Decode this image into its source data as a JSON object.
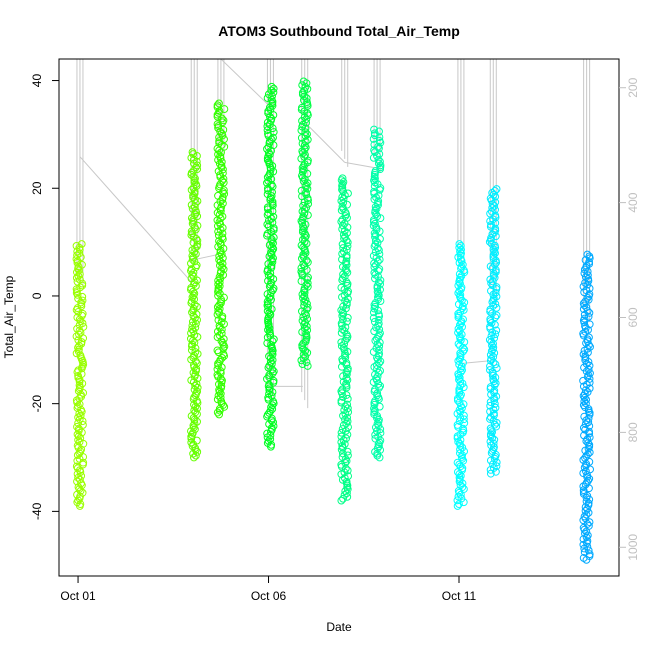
{
  "chart_data": {
    "type": "scatter",
    "title": "ATOM3 Southbound Total_Air_Temp",
    "xlabel": "Date",
    "ylabel": "Total_Air_Temp",
    "x_ticks": [
      {
        "label": "Oct 01",
        "day": 1
      },
      {
        "label": "Oct 06",
        "day": 6
      },
      {
        "label": "Oct 11",
        "day": 11
      }
    ],
    "xlim_days": [
      0.5,
      15.2
    ],
    "ylim": [
      -52,
      44
    ],
    "y_ticks": [
      -40,
      -20,
      0,
      20,
      40
    ],
    "y2_ticks": [
      200,
      400,
      600,
      800,
      1000
    ],
    "y2lim": [
      1050,
      150
    ],
    "y2_color": "#c0c0c0",
    "grid": false,
    "legend": "none",
    "series": [
      {
        "day": 1.05,
        "ymin": -39,
        "ymax": 10,
        "color": "#99ff00"
      },
      {
        "day": 4.05,
        "ymin": -30,
        "ymax": 27,
        "color": "#66ff00"
      },
      {
        "day": 4.75,
        "ymin": -22,
        "ymax": 36,
        "color": "#33ff00"
      },
      {
        "day": 6.05,
        "ymin": -28,
        "ymax": 39,
        "color": "#00ff22"
      },
      {
        "day": 6.95,
        "ymin": -13,
        "ymax": 40,
        "color": "#00ff44"
      },
      {
        "day": 8.0,
        "ymin": -38,
        "ymax": 22,
        "color": "#00ff88"
      },
      {
        "day": 8.85,
        "ymin": -30,
        "ymax": 31,
        "color": "#00ffaa"
      },
      {
        "day": 11.05,
        "ymin": -39,
        "ymax": 10,
        "color": "#00ffff"
      },
      {
        "day": 11.9,
        "ymin": -33,
        "ymax": 20,
        "color": "#00eeff"
      },
      {
        "day": 14.35,
        "ymin": -49,
        "ymax": 8,
        "color": "#00aaff"
      }
    ],
    "flight_track": {
      "color": "#c8c8c8",
      "segments": [
        {
          "day": 1.05,
          "alt_min": 520,
          "alt_max": 150
        },
        {
          "day": 4.05,
          "alt_min": 470,
          "alt_max": 150
        },
        {
          "day": 4.75,
          "alt_min": 300,
          "alt_max": 150
        },
        {
          "day": 6.05,
          "alt_min": 720,
          "alt_max": 150
        },
        {
          "day": 6.95,
          "alt_min": 730,
          "alt_max": 150
        },
        {
          "day": 8.0,
          "alt_min": 310,
          "alt_max": 150
        },
        {
          "day": 8.85,
          "alt_min": 320,
          "alt_max": 150
        },
        {
          "day": 11.05,
          "alt_min": 500,
          "alt_max": 150
        },
        {
          "day": 11.9,
          "alt_min": 550,
          "alt_max": 150
        },
        {
          "day": 14.35,
          "alt_min": 580,
          "alt_max": 150
        }
      ],
      "connectors": [
        [
          1.05,
          320,
          4.0,
          540
        ],
        [
          4.0,
          500,
          4.7,
          490
        ],
        [
          4.75,
          150,
          6.0,
          230
        ],
        [
          6.0,
          720,
          6.9,
          720
        ],
        [
          6.95,
          260,
          8.0,
          330
        ],
        [
          8.0,
          330,
          8.85,
          340
        ],
        [
          11.05,
          680,
          11.85,
          675
        ]
      ]
    }
  }
}
